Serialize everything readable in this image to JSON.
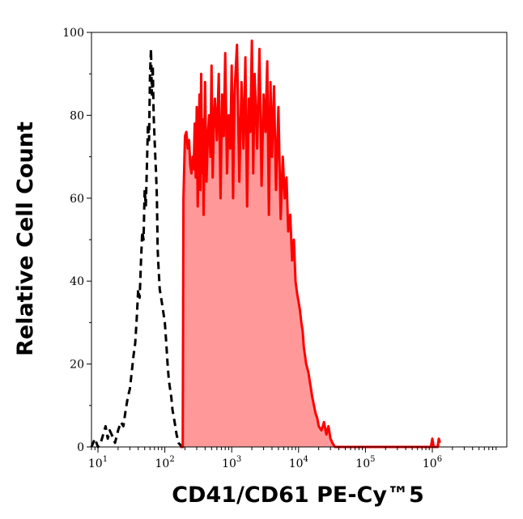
{
  "chart_data": {
    "type": "area",
    "xlabel": "CD41/CD61 PE-Cy™5",
    "ylabel": "Relative Cell Count",
    "x_scale": "log",
    "xlim": [
      8,
      13000000
    ],
    "ylim": [
      0,
      100
    ],
    "x_ticks": [
      {
        "value": 10,
        "base": "10",
        "exp": "1"
      },
      {
        "value": 100,
        "base": "10",
        "exp": "2"
      },
      {
        "value": 1000,
        "base": "10",
        "exp": "3"
      },
      {
        "value": 10000,
        "base": "10",
        "exp": "4"
      },
      {
        "value": 100000,
        "base": "10",
        "exp": "5"
      },
      {
        "value": 1000000,
        "base": "10",
        "exp": "6"
      }
    ],
    "y_ticks": [
      0,
      20,
      40,
      60,
      80,
      100
    ],
    "grid": false,
    "legend": "none",
    "series": [
      {
        "style": "dashed",
        "color": "#000000",
        "fill": "none",
        "points": [
          [
            8,
            0
          ],
          [
            9,
            2
          ],
          [
            10,
            0
          ],
          [
            11,
            1
          ],
          [
            12,
            3
          ],
          [
            13,
            5
          ],
          [
            14,
            2
          ],
          [
            15,
            4
          ],
          [
            16,
            3
          ],
          [
            17,
            2
          ],
          [
            18,
            1
          ],
          [
            20,
            4
          ],
          [
            22,
            6
          ],
          [
            24,
            5
          ],
          [
            26,
            9
          ],
          [
            28,
            12
          ],
          [
            30,
            14
          ],
          [
            32,
            18
          ],
          [
            34,
            22
          ],
          [
            36,
            25
          ],
          [
            38,
            31
          ],
          [
            40,
            38
          ],
          [
            42,
            36
          ],
          [
            44,
            45
          ],
          [
            46,
            52
          ],
          [
            48,
            50
          ],
          [
            50,
            62
          ],
          [
            52,
            58
          ],
          [
            54,
            68
          ],
          [
            56,
            78
          ],
          [
            58,
            74
          ],
          [
            60,
            90
          ],
          [
            62,
            96
          ],
          [
            64,
            85
          ],
          [
            66,
            92
          ],
          [
            68,
            80
          ],
          [
            70,
            75
          ],
          [
            72,
            70
          ],
          [
            74,
            66
          ],
          [
            76,
            60
          ],
          [
            78,
            48
          ],
          [
            80,
            44
          ],
          [
            84,
            38
          ],
          [
            88,
            36
          ],
          [
            92,
            34
          ],
          [
            96,
            32
          ],
          [
            100,
            30
          ],
          [
            105,
            25
          ],
          [
            110,
            20
          ],
          [
            115,
            16
          ],
          [
            120,
            14
          ],
          [
            125,
            12
          ],
          [
            130,
            9
          ],
          [
            140,
            6
          ],
          [
            150,
            3
          ],
          [
            160,
            1
          ],
          [
            180,
            0
          ],
          [
            200,
            0
          ]
        ]
      },
      {
        "style": "solid",
        "color": "#ff0000",
        "fill": "#ff9999",
        "points": [
          [
            170,
            0
          ],
          [
            185,
            0
          ],
          [
            190,
            60
          ],
          [
            200,
            75
          ],
          [
            210,
            76
          ],
          [
            220,
            72
          ],
          [
            230,
            74
          ],
          [
            240,
            68
          ],
          [
            250,
            66
          ],
          [
            260,
            70
          ],
          [
            270,
            67
          ],
          [
            280,
            78
          ],
          [
            290,
            65
          ],
          [
            300,
            82
          ],
          [
            310,
            58
          ],
          [
            320,
            72
          ],
          [
            330,
            85
          ],
          [
            340,
            62
          ],
          [
            350,
            90
          ],
          [
            360,
            66
          ],
          [
            370,
            79
          ],
          [
            380,
            56
          ],
          [
            400,
            88
          ],
          [
            420,
            64
          ],
          [
            440,
            75
          ],
          [
            460,
            80
          ],
          [
            480,
            70
          ],
          [
            500,
            92
          ],
          [
            520,
            65
          ],
          [
            540,
            78
          ],
          [
            560,
            84
          ],
          [
            600,
            74
          ],
          [
            640,
            90
          ],
          [
            680,
            60
          ],
          [
            720,
            85
          ],
          [
            760,
            75
          ],
          [
            800,
            95
          ],
          [
            850,
            66
          ],
          [
            900,
            80
          ],
          [
            950,
            72
          ],
          [
            1000,
            92
          ],
          [
            1050,
            60
          ],
          [
            1100,
            85
          ],
          [
            1200,
            97
          ],
          [
            1300,
            64
          ],
          [
            1400,
            88
          ],
          [
            1500,
            72
          ],
          [
            1600,
            94
          ],
          [
            1700,
            58
          ],
          [
            1800,
            84
          ],
          [
            1900,
            76
          ],
          [
            2000,
            98
          ],
          [
            2100,
            66
          ],
          [
            2200,
            90
          ],
          [
            2400,
            72
          ],
          [
            2600,
            96
          ],
          [
            2800,
            63
          ],
          [
            3000,
            85
          ],
          [
            3200,
            76
          ],
          [
            3400,
            93
          ],
          [
            3600,
            56
          ],
          [
            3800,
            88
          ],
          [
            4000,
            70
          ],
          [
            4300,
            87
          ],
          [
            4600,
            62
          ],
          [
            5000,
            82
          ],
          [
            5400,
            55
          ],
          [
            5800,
            70
          ],
          [
            6200,
            60
          ],
          [
            6600,
            65
          ],
          [
            7000,
            52
          ],
          [
            7500,
            56
          ],
          [
            8000,
            45
          ],
          [
            8500,
            50
          ],
          [
            9000,
            40
          ],
          [
            9500,
            37
          ],
          [
            10000,
            35
          ],
          [
            10500,
            33
          ],
          [
            11000,
            30
          ],
          [
            11500,
            28
          ],
          [
            12000,
            24
          ],
          [
            13000,
            20
          ],
          [
            14000,
            18
          ],
          [
            15000,
            15
          ],
          [
            16000,
            12
          ],
          [
            17000,
            10
          ],
          [
            18000,
            8
          ],
          [
            19000,
            7
          ],
          [
            20000,
            5
          ],
          [
            22000,
            4
          ],
          [
            24000,
            6
          ],
          [
            26000,
            3
          ],
          [
            28000,
            5
          ],
          [
            30000,
            2
          ],
          [
            32000,
            1
          ],
          [
            35000,
            0
          ],
          [
            40000,
            0
          ],
          [
            60000,
            0
          ],
          [
            100000,
            0
          ],
          [
            200000,
            0
          ],
          [
            400000,
            0
          ],
          [
            800000,
            0
          ],
          [
            950000,
            0
          ],
          [
            1000000,
            2
          ],
          [
            1050000,
            0
          ],
          [
            1200000,
            0
          ],
          [
            1250000,
            2
          ],
          [
            1300000,
            1
          ]
        ]
      }
    ]
  }
}
